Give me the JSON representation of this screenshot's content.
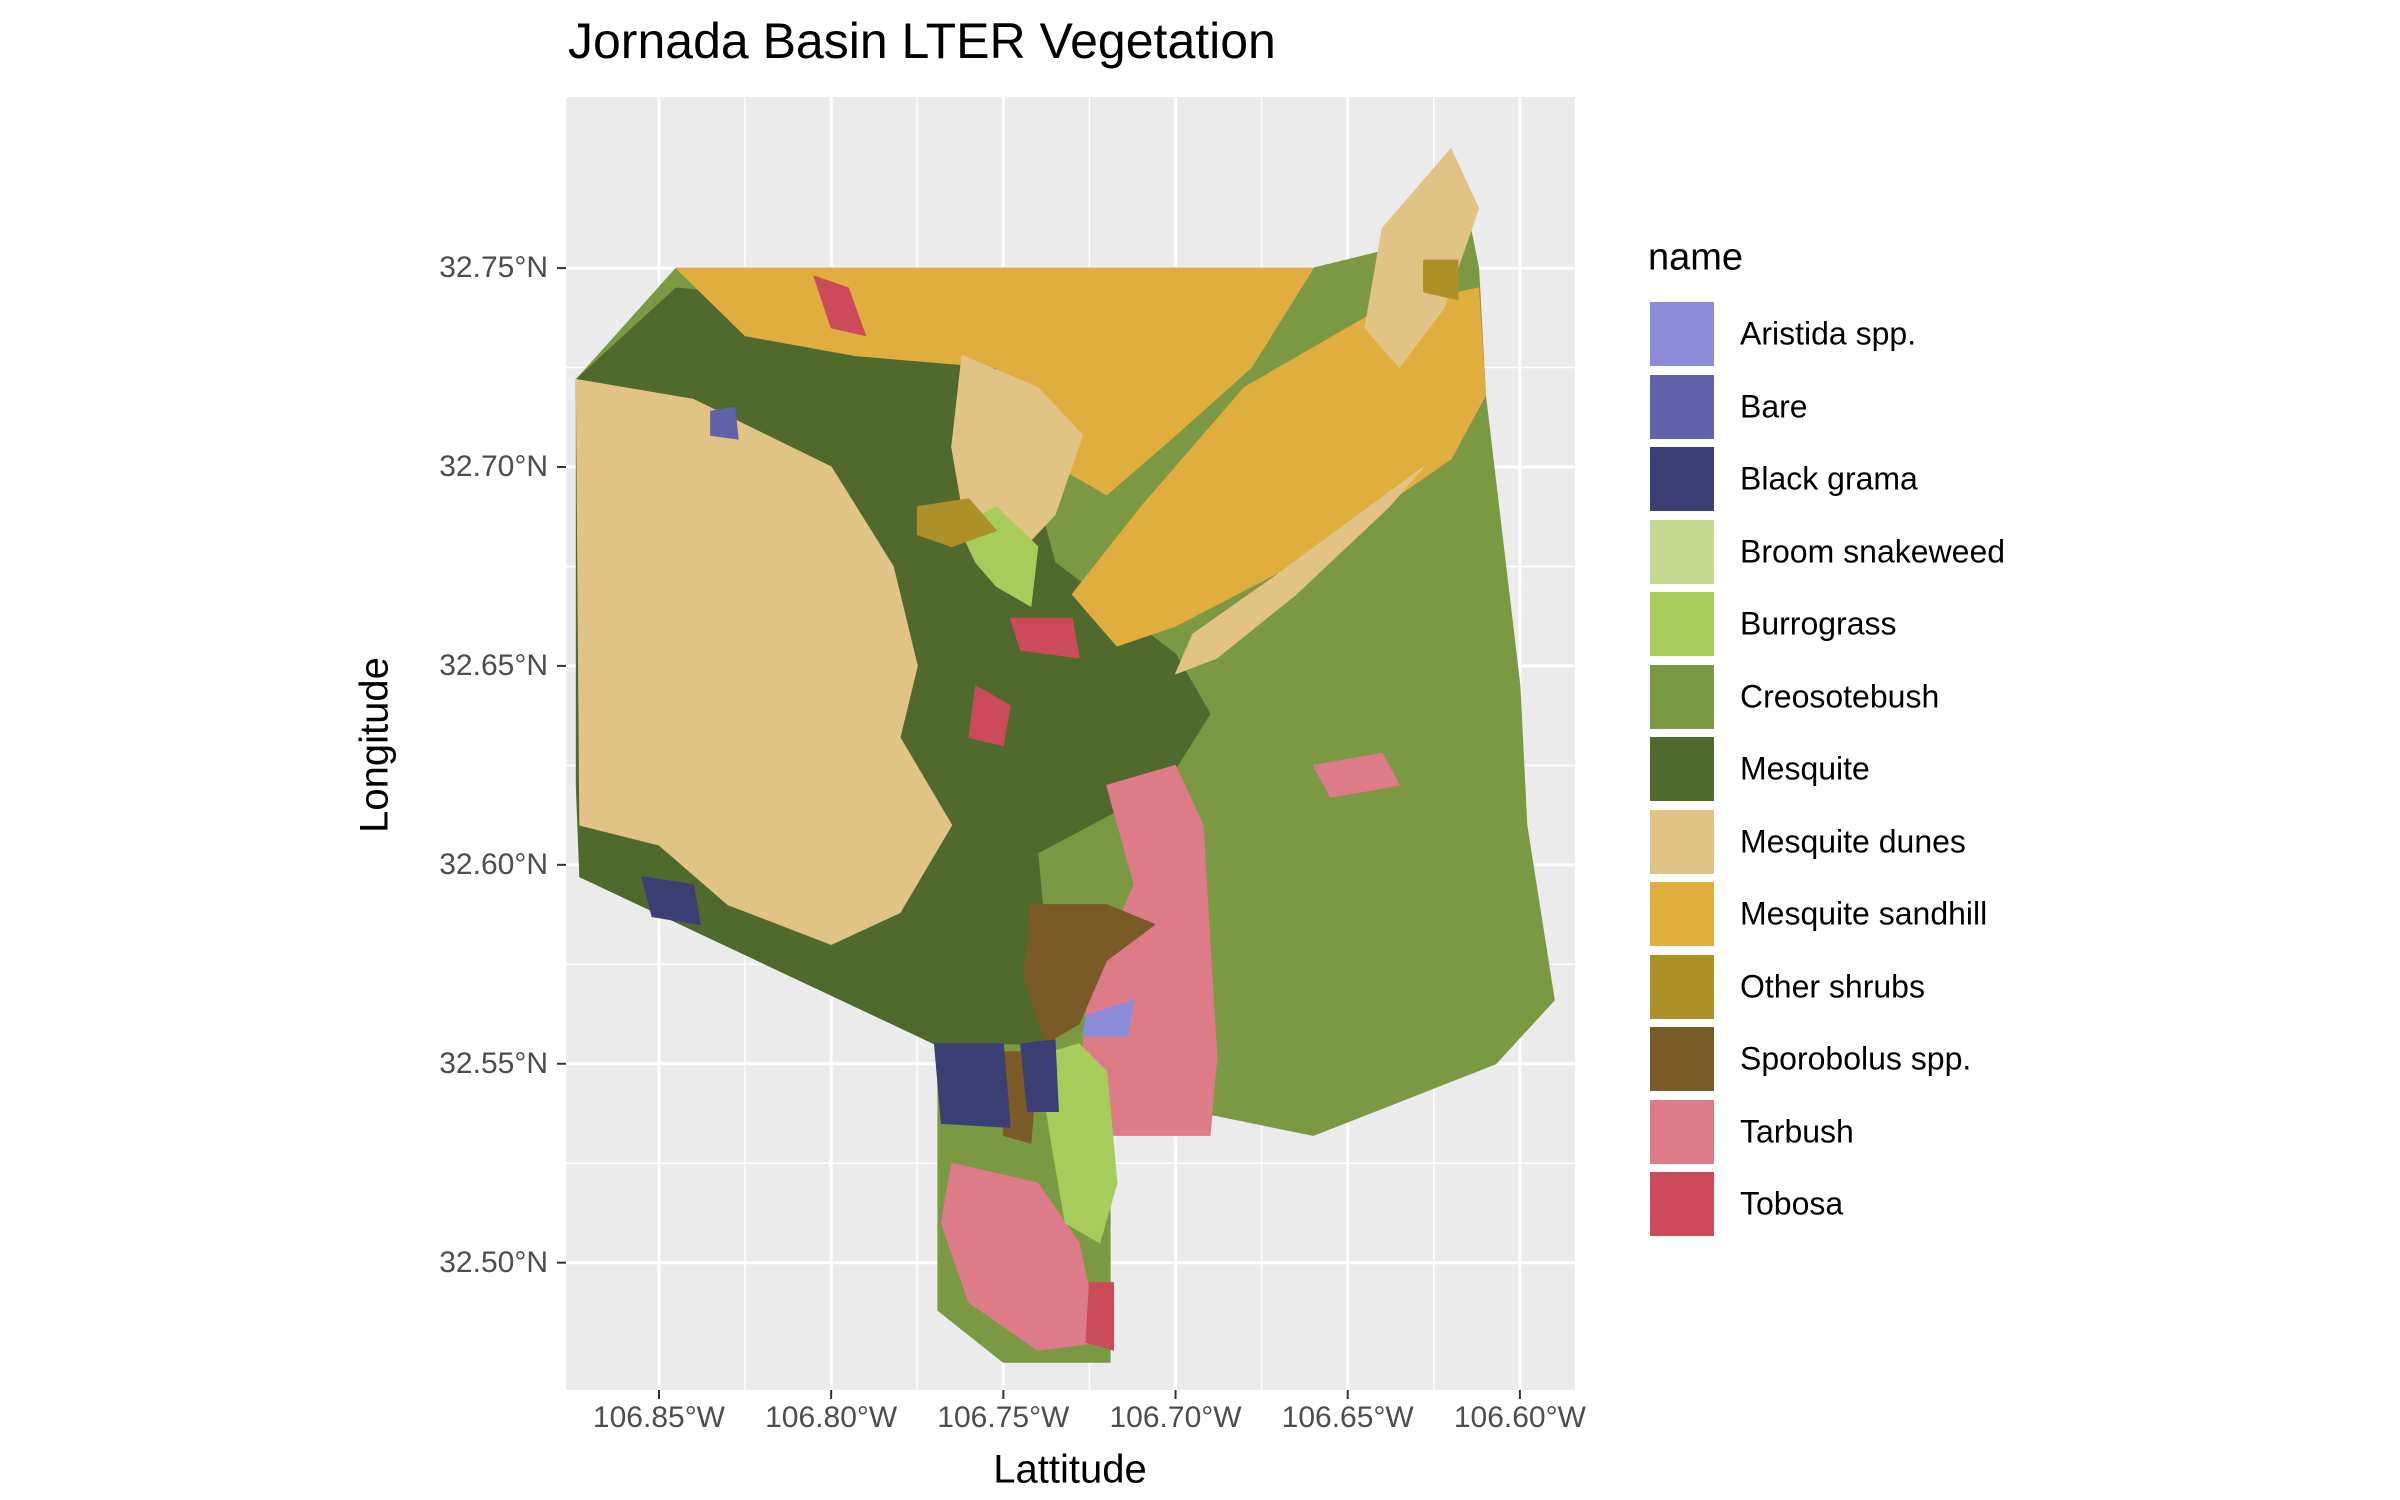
{
  "chart_data": {
    "type": "map",
    "title": "Jornada Basin LTER Vegetation",
    "xlabel": "Lattitude",
    "ylabel": "Longitude",
    "x_ticks": [
      {
        "value": -106.85,
        "label": "106.85°W"
      },
      {
        "value": -106.8,
        "label": "106.80°W"
      },
      {
        "value": -106.75,
        "label": "106.75°W"
      },
      {
        "value": -106.7,
        "label": "106.70°W"
      },
      {
        "value": -106.65,
        "label": "106.65°W"
      },
      {
        "value": -106.6,
        "label": "106.60°W"
      }
    ],
    "y_ticks": [
      {
        "value": 32.75,
        "label": "32.75°N"
      },
      {
        "value": 32.7,
        "label": "32.70°N"
      },
      {
        "value": 32.65,
        "label": "32.65°N"
      },
      {
        "value": 32.6,
        "label": "32.60°N"
      },
      {
        "value": 32.55,
        "label": "32.55°N"
      },
      {
        "value": 32.5,
        "label": "32.50°N"
      }
    ],
    "xlim": [
      -106.877,
      -106.584
    ],
    "ylim": [
      32.468,
      32.793
    ],
    "grid": true,
    "legend": {
      "title": "name",
      "position": "right",
      "items": [
        {
          "name": "Aristida spp.",
          "color": "#8b8bd9"
        },
        {
          "name": "Bare",
          "color": "#6262aa"
        },
        {
          "name": "Black grama",
          "color": "#3b3f73"
        },
        {
          "name": "Broom snakeweed",
          "color": "#c6d88f"
        },
        {
          "name": "Burrograss",
          "color": "#a8cc5c"
        },
        {
          "name": "Creosotebush",
          "color": "#7b9842"
        },
        {
          "name": "Mesquite",
          "color": "#4f6a2c"
        },
        {
          "name": "Mesquite dunes",
          "color": "#e2c386"
        },
        {
          "name": "Mesquite sandhill",
          "color": "#e0ad3f"
        },
        {
          "name": "Other shrubs",
          "color": "#ad9128"
        },
        {
          "name": "Sporobolus spp.",
          "color": "#7a5a27"
        },
        {
          "name": "Tarbush",
          "color": "#de7b89"
        },
        {
          "name": "Tobosa",
          "color": "#cc4b5a"
        }
      ]
    },
    "regions": [
      {
        "name": "Creosotebush",
        "points": [
          [
            -106.845,
            32.75
          ],
          [
            -106.66,
            32.75
          ],
          [
            -106.622,
            32.758
          ],
          [
            -106.615,
            32.763
          ],
          [
            -106.612,
            32.75
          ],
          [
            -106.61,
            32.718
          ],
          [
            -106.6,
            32.645
          ],
          [
            -106.598,
            32.61
          ],
          [
            -106.59,
            32.566
          ],
          [
            -106.607,
            32.55
          ],
          [
            -106.66,
            32.532
          ],
          [
            -106.745,
            32.547
          ],
          [
            -106.765,
            32.555
          ],
          [
            -106.873,
            32.597
          ],
          [
            -106.874,
            32.722
          ]
        ]
      },
      {
        "name": "Creosotebush",
        "points": [
          [
            -106.769,
            32.555
          ],
          [
            -106.719,
            32.555
          ],
          [
            -106.719,
            32.475
          ],
          [
            -106.75,
            32.475
          ],
          [
            -106.769,
            32.488
          ]
        ]
      },
      {
        "name": "Mesquite",
        "points": [
          [
            -106.874,
            32.722
          ],
          [
            -106.845,
            32.745
          ],
          [
            -106.76,
            32.738
          ],
          [
            -106.745,
            32.708
          ],
          [
            -106.735,
            32.676
          ],
          [
            -106.7,
            32.653
          ],
          [
            -106.69,
            32.638
          ],
          [
            -106.703,
            32.62
          ],
          [
            -106.74,
            32.603
          ],
          [
            -106.735,
            32.555
          ],
          [
            -106.77,
            32.555
          ],
          [
            -106.873,
            32.597
          ],
          [
            -106.874,
            32.62
          ]
        ]
      },
      {
        "name": "Mesquite sandhill",
        "points": [
          [
            -106.845,
            32.75
          ],
          [
            -106.66,
            32.75
          ],
          [
            -106.678,
            32.725
          ],
          [
            -106.7,
            32.708
          ],
          [
            -106.72,
            32.693
          ],
          [
            -106.744,
            32.705
          ],
          [
            -106.752,
            32.725
          ],
          [
            -106.793,
            32.728
          ],
          [
            -106.825,
            32.733
          ]
        ]
      },
      {
        "name": "Mesquite sandhill",
        "points": [
          [
            -106.612,
            32.745
          ],
          [
            -106.61,
            32.718
          ],
          [
            -106.62,
            32.702
          ],
          [
            -106.66,
            32.678
          ],
          [
            -106.7,
            32.66
          ],
          [
            -106.717,
            32.655
          ],
          [
            -106.73,
            32.668
          ],
          [
            -106.71,
            32.69
          ],
          [
            -106.68,
            32.72
          ],
          [
            -106.64,
            32.74
          ]
        ]
      },
      {
        "name": "Mesquite dunes",
        "points": [
          [
            -106.874,
            32.722
          ],
          [
            -106.84,
            32.717
          ],
          [
            -106.8,
            32.7
          ],
          [
            -106.782,
            32.675
          ],
          [
            -106.775,
            32.65
          ],
          [
            -106.78,
            32.632
          ],
          [
            -106.765,
            32.61
          ],
          [
            -106.78,
            32.588
          ],
          [
            -106.8,
            32.58
          ],
          [
            -106.83,
            32.59
          ],
          [
            -106.85,
            32.605
          ],
          [
            -106.873,
            32.61
          ]
        ]
      },
      {
        "name": "Mesquite dunes",
        "points": [
          [
            -106.762,
            32.728
          ],
          [
            -106.74,
            32.72
          ],
          [
            -106.727,
            32.708
          ],
          [
            -106.735,
            32.688
          ],
          [
            -106.748,
            32.676
          ],
          [
            -106.76,
            32.68
          ],
          [
            -106.765,
            32.705
          ]
        ]
      },
      {
        "name": "Mesquite dunes",
        "points": [
          [
            -106.7,
            32.648
          ],
          [
            -106.688,
            32.652
          ],
          [
            -106.665,
            32.668
          ],
          [
            -106.638,
            32.69
          ],
          [
            -106.628,
            32.7
          ],
          [
            -106.672,
            32.672
          ],
          [
            -106.695,
            32.658
          ]
        ]
      },
      {
        "name": "Mesquite dunes",
        "points": [
          [
            -106.64,
            32.76
          ],
          [
            -106.62,
            32.78
          ],
          [
            -106.612,
            32.765
          ],
          [
            -106.622,
            32.74
          ],
          [
            -106.635,
            32.725
          ],
          [
            -106.645,
            32.735
          ]
        ]
      },
      {
        "name": "Tarbush",
        "points": [
          [
            -106.72,
            32.62
          ],
          [
            -106.7,
            32.625
          ],
          [
            -106.692,
            32.61
          ],
          [
            -106.69,
            32.58
          ],
          [
            -106.688,
            32.552
          ],
          [
            -106.69,
            32.532
          ],
          [
            -106.72,
            32.532
          ],
          [
            -106.728,
            32.545
          ],
          [
            -106.725,
            32.57
          ],
          [
            -106.712,
            32.595
          ]
        ]
      },
      {
        "name": "Tarbush",
        "points": [
          [
            -106.765,
            32.525
          ],
          [
            -106.74,
            32.52
          ],
          [
            -106.728,
            32.505
          ],
          [
            -106.722,
            32.48
          ],
          [
            -106.74,
            32.478
          ],
          [
            -106.76,
            32.49
          ],
          [
            -106.768,
            32.51
          ]
        ]
      },
      {
        "name": "Tarbush",
        "points": [
          [
            -106.66,
            32.625
          ],
          [
            -106.64,
            32.628
          ],
          [
            -106.635,
            32.62
          ],
          [
            -106.655,
            32.617
          ]
        ]
      },
      {
        "name": "Sporobolus spp.",
        "points": [
          [
            -106.742,
            32.59
          ],
          [
            -106.72,
            32.59
          ],
          [
            -106.706,
            32.585
          ],
          [
            -106.72,
            32.576
          ],
          [
            -106.728,
            32.56
          ],
          [
            -106.738,
            32.555
          ],
          [
            -106.744,
            32.572
          ]
        ]
      },
      {
        "name": "Sporobolus spp.",
        "points": [
          [
            -106.75,
            32.553
          ],
          [
            -106.74,
            32.553
          ],
          [
            -106.742,
            32.53
          ],
          [
            -106.75,
            32.532
          ]
        ]
      },
      {
        "name": "Burrograss",
        "points": [
          [
            -106.74,
            32.552
          ],
          [
            -106.728,
            32.555
          ],
          [
            -106.72,
            32.548
          ],
          [
            -106.717,
            32.52
          ],
          [
            -106.722,
            32.505
          ],
          [
            -106.732,
            32.51
          ],
          [
            -106.736,
            32.53
          ]
        ]
      },
      {
        "name": "Burrograss",
        "points": [
          [
            -106.763,
            32.685
          ],
          [
            -106.752,
            32.69
          ],
          [
            -106.74,
            32.68
          ],
          [
            -106.742,
            32.665
          ],
          [
            -106.752,
            32.67
          ],
          [
            -106.758,
            32.676
          ]
        ]
      },
      {
        "name": "Black grama",
        "points": [
          [
            -106.77,
            32.555
          ],
          [
            -106.75,
            32.555
          ],
          [
            -106.748,
            32.534
          ],
          [
            -106.768,
            32.535
          ]
        ]
      },
      {
        "name": "Black grama",
        "points": [
          [
            -106.745,
            32.555
          ],
          [
            -106.735,
            32.556
          ],
          [
            -106.734,
            32.538
          ],
          [
            -106.743,
            32.538
          ]
        ]
      },
      {
        "name": "Black grama",
        "points": [
          [
            -106.855,
            32.597
          ],
          [
            -106.84,
            32.595
          ],
          [
            -106.838,
            32.585
          ],
          [
            -106.852,
            32.587
          ]
        ]
      },
      {
        "name": "Tobosa",
        "points": [
          [
            -106.805,
            32.748
          ],
          [
            -106.795,
            32.745
          ],
          [
            -106.79,
            32.733
          ],
          [
            -106.8,
            32.735
          ]
        ]
      },
      {
        "name": "Tobosa",
        "points": [
          [
            -106.748,
            32.662
          ],
          [
            -106.73,
            32.662
          ],
          [
            -106.728,
            32.652
          ],
          [
            -106.745,
            32.654
          ]
        ]
      },
      {
        "name": "Tobosa",
        "points": [
          [
            -106.758,
            32.645
          ],
          [
            -106.748,
            32.64
          ],
          [
            -106.75,
            32.63
          ],
          [
            -106.76,
            32.632
          ]
        ]
      },
      {
        "name": "Tobosa",
        "points": [
          [
            -106.725,
            32.495
          ],
          [
            -106.718,
            32.495
          ],
          [
            -106.718,
            32.478
          ],
          [
            -106.726,
            32.48
          ]
        ]
      },
      {
        "name": "Other shrubs",
        "points": [
          [
            -106.775,
            32.69
          ],
          [
            -106.76,
            32.692
          ],
          [
            -106.752,
            32.684
          ],
          [
            -106.765,
            32.68
          ],
          [
            -106.775,
            32.683
          ]
        ]
      },
      {
        "name": "Other shrubs",
        "points": [
          [
            -106.628,
            32.752
          ],
          [
            -106.618,
            32.752
          ],
          [
            -106.618,
            32.742
          ],
          [
            -106.628,
            32.744
          ]
        ]
      },
      {
        "name": "Aristida spp.",
        "points": [
          [
            -106.726,
            32.562
          ],
          [
            -106.712,
            32.566
          ],
          [
            -106.714,
            32.557
          ],
          [
            -106.727,
            32.557
          ]
        ]
      },
      {
        "name": "Bare",
        "points": [
          [
            -106.835,
            32.714
          ],
          [
            -106.828,
            32.715
          ],
          [
            -106.827,
            32.707
          ],
          [
            -106.835,
            32.708
          ]
        ]
      }
    ]
  }
}
